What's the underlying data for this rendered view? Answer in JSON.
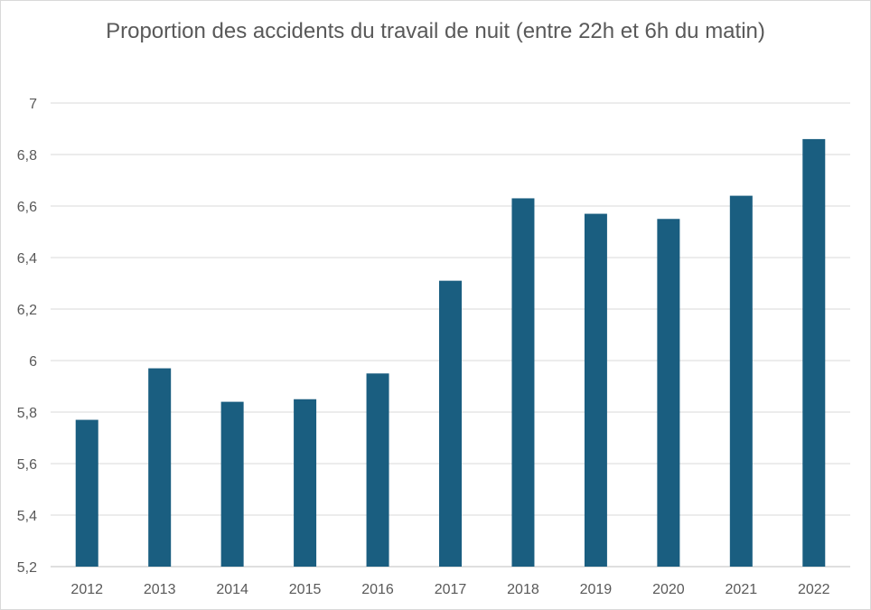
{
  "chart_data": {
    "type": "bar",
    "title": "Proportion des accidents du travail de nuit (entre 22h et 6h du matin)",
    "xlabel": "",
    "ylabel": "",
    "categories": [
      "2012",
      "2013",
      "2014",
      "2015",
      "2016",
      "2017",
      "2018",
      "2019",
      "2020",
      "2021",
      "2022"
    ],
    "values": [
      5.77,
      5.97,
      5.84,
      5.85,
      5.95,
      6.31,
      6.63,
      6.57,
      6.55,
      6.64,
      6.86
    ],
    "ylim": [
      5.2,
      7
    ],
    "yticks": [
      5.2,
      5.4,
      5.6,
      5.8,
      6,
      6.2,
      6.4,
      6.6,
      6.8,
      7
    ],
    "ytick_labels": [
      "5,2",
      "5,4",
      "5,6",
      "5,8",
      "6",
      "6,2",
      "6,4",
      "6,6",
      "6,8",
      "7"
    ],
    "bar_color": "#1a5e80",
    "grid": true,
    "legend": "none"
  }
}
